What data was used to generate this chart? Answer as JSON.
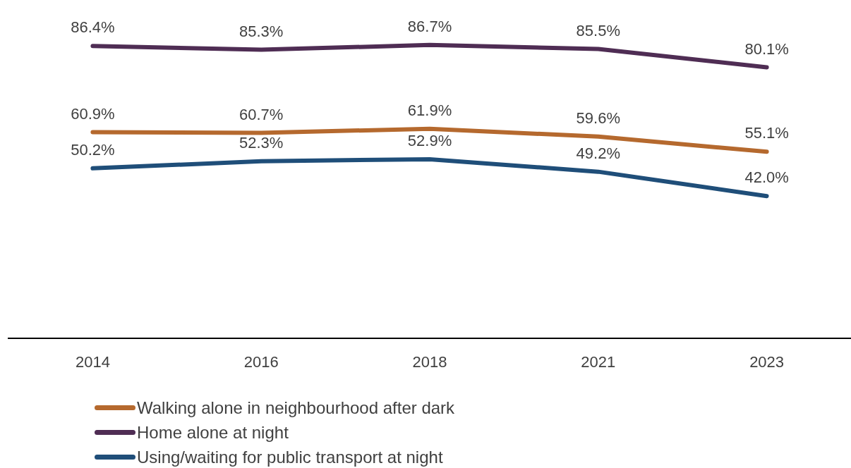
{
  "chart_data": {
    "type": "line",
    "categories": [
      "2014",
      "2016",
      "2018",
      "2021",
      "2023"
    ],
    "marker": "none",
    "legend": "bottom left",
    "series": [
      {
        "name": "Walking alone in neighbourhood after dark",
        "color": "#b5692e",
        "values": [
          60.9,
          60.7,
          61.9,
          59.6,
          55.1
        ],
        "value_labels": [
          "60.9%",
          "60.7%",
          "61.9%",
          "59.6%",
          "55.1%"
        ]
      },
      {
        "name": "Home alone at night",
        "color": "#4f2d54",
        "values": [
          86.4,
          85.3,
          86.7,
          85.5,
          80.1
        ],
        "value_labels": [
          "86.4%",
          "85.3%",
          "86.7%",
          "85.5%",
          "80.1%"
        ]
      },
      {
        "name": "Using/waiting for public transport at night",
        "color": "#1f4e79",
        "values": [
          50.2,
          52.3,
          52.9,
          49.2,
          42.0
        ],
        "value_labels": [
          "50.2%",
          "52.3%",
          "52.9%",
          "49.2%",
          "42.0%"
        ]
      }
    ]
  }
}
